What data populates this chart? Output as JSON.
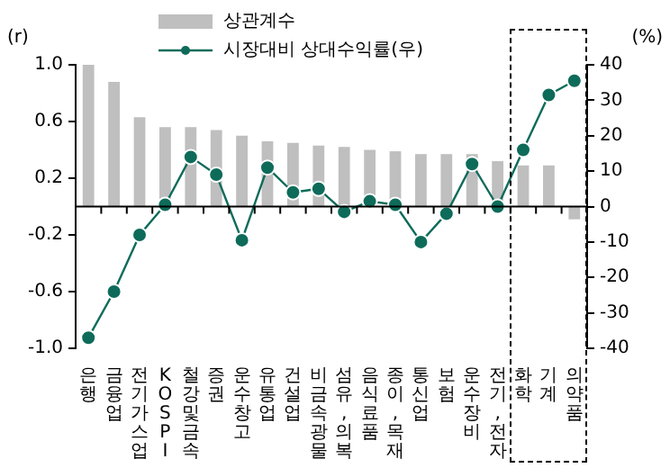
{
  "chart_data": {
    "type": "bar",
    "categories": [
      "은행",
      "금융업",
      "전기가스업",
      "KOSPI",
      "철강및금속",
      "증권",
      "운수창고",
      "유통업",
      "건설업",
      "비금속광물",
      "섬유,의복",
      "음식료품",
      "종이,목재",
      "통신업",
      "보험",
      "운수장비",
      "전기,전자",
      "화학",
      "기계",
      "의약품"
    ],
    "series": [
      {
        "name": "상관계수",
        "color": "#bfbfbf",
        "values": [
          1.0,
          0.88,
          0.63,
          0.56,
          0.56,
          0.54,
          0.5,
          0.46,
          0.45,
          0.43,
          0.42,
          0.4,
          0.39,
          0.37,
          0.37,
          0.37,
          0.32,
          0.29,
          0.29,
          -0.09
        ]
      },
      {
        "name": "시장대비 상대수익률(우)",
        "type": "line",
        "axis": "y2",
        "color": "#0e6b5a",
        "values": [
          -37,
          -24,
          -8,
          0.5,
          14,
          9,
          -9.5,
          11,
          4,
          5,
          -1.5,
          1.5,
          0.5,
          -10,
          -2,
          12,
          0,
          16,
          31.5,
          35.5
        ]
      }
    ],
    "ylabel": "(r)",
    "y2label": "(%)",
    "ylim": [
      -1,
      1
    ],
    "yticks": [
      {
        "value": 1,
        "label": "1.0"
      },
      0.6,
      0.2,
      -0.2,
      -0.6,
      {
        "value": -1,
        "label": "-1.0"
      }
    ],
    "y2lim": [
      -40,
      40
    ],
    "y2ticks": [
      -40,
      -30,
      -20,
      -10,
      0,
      10,
      20,
      30,
      40
    ],
    "marker": "circle",
    "line_style": "solid",
    "legend": "top"
  }
}
